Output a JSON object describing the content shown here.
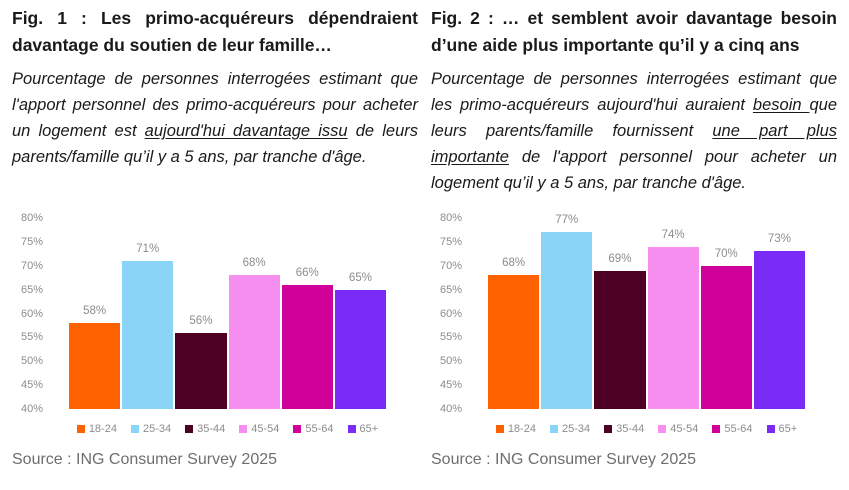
{
  "figures": [
    {
      "title": "Fig. 1 : Les primo-acquéreurs dépendraient davantage du soutien de leur famille…",
      "subtitle": {
        "parts": [
          {
            "text": "Pourcentage de personnes interrogées estimant que l'apport personnel des primo-acquéreurs pour acheter un logement est ",
            "underline": false
          },
          {
            "text": "aujourd'hui davantage issu",
            "underline": true
          },
          {
            "text": " de leurs parents/famille qu’il y a 5 ans, par tranche d'âge.",
            "underline": false
          }
        ]
      },
      "source": "Source : ING Consumer Survey 2025"
    },
    {
      "title": "Fig. 2 : … et semblent avoir davantage besoin d’une aide plus importante qu’il y a cinq ans",
      "subtitle": {
        "parts": [
          {
            "text": "Pourcentage de personnes interrogées estimant que les primo-acquéreurs aujourd'hui auraient ",
            "underline": false
          },
          {
            "text": "besoin ",
            "underline": true
          },
          {
            "text": "que leurs parents/famille fournissent ",
            "underline": false
          },
          {
            "text": "une part plus importante",
            "underline": true
          },
          {
            "text": " de l'apport personnel pour acheter un logement qu’il y a 5 ans, par tranche d'âge.",
            "underline": false
          }
        ]
      },
      "source": "Source : ING Consumer Survey 2025"
    }
  ],
  "chart_data": [
    {
      "type": "bar",
      "title": "",
      "categories": [
        "18-24",
        "25-34",
        "35-44",
        "45-54",
        "55-64",
        "65+"
      ],
      "values": [
        58,
        71,
        56,
        68,
        66,
        65
      ],
      "value_labels": [
        "58%",
        "71%",
        "56%",
        "68%",
        "66%",
        "65%"
      ],
      "colors": [
        "#FF6200",
        "#8AD4F7",
        "#4D0024",
        "#F78FF0",
        "#D0009B",
        "#7A2BF5"
      ],
      "xlabel": "",
      "ylabel": "",
      "ylim": [
        40,
        80
      ],
      "grid": false,
      "legend_position": "bottom",
      "yticks": [
        {
          "value": 40,
          "label": "40%"
        },
        {
          "value": 45,
          "label": "45%"
        },
        {
          "value": 50,
          "label": "50%"
        },
        {
          "value": 55,
          "label": "55%"
        },
        {
          "value": 60,
          "label": "60%"
        },
        {
          "value": 65,
          "label": "65%"
        },
        {
          "value": 70,
          "label": "70%"
        },
        {
          "value": 75,
          "label": "75%"
        },
        {
          "value": 80,
          "label": "80%"
        }
      ]
    },
    {
      "type": "bar",
      "title": "",
      "categories": [
        "18-24",
        "25-34",
        "35-44",
        "45-54",
        "55-64",
        "65+"
      ],
      "values": [
        68,
        77,
        69,
        74,
        70,
        73
      ],
      "value_labels": [
        "68%",
        "77%",
        "69%",
        "74%",
        "70%",
        "73%"
      ],
      "colors": [
        "#FF6200",
        "#8AD4F7",
        "#4D0024",
        "#F78FF0",
        "#D0009B",
        "#7A2BF5"
      ],
      "xlabel": "",
      "ylabel": "",
      "ylim": [
        40,
        80
      ],
      "grid": false,
      "legend_position": "bottom",
      "yticks": [
        {
          "value": 40,
          "label": "40%"
        },
        {
          "value": 45,
          "label": "45%"
        },
        {
          "value": 50,
          "label": "50%"
        },
        {
          "value": 55,
          "label": "55%"
        },
        {
          "value": 60,
          "label": "60%"
        },
        {
          "value": 65,
          "label": "65%"
        },
        {
          "value": 70,
          "label": "70%"
        },
        {
          "value": 75,
          "label": "75%"
        },
        {
          "value": 80,
          "label": "80%"
        }
      ]
    }
  ],
  "theme": {
    "axis_label_color": "#8C8C8C",
    "value_label_color": "#8C8C8C",
    "source_text_color": "#6E6E6E",
    "title_text_color": "#1A1A1A",
    "background": "#FFFFFF"
  }
}
